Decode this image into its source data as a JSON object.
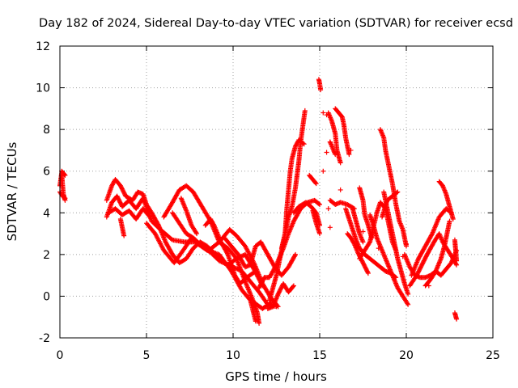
{
  "chart_data": {
    "type": "scatter",
    "title": "Day 182 of 2024, Sidereal Day-to-day VTEC variation (SDTVAR) for receiver ecsd",
    "xlabel": "GPS time / hours",
    "ylabel": "SDTVAR / TECUs",
    "xlim": [
      0,
      25
    ],
    "ylim": [
      -2,
      12
    ],
    "xticks": [
      0,
      5,
      10,
      15,
      20,
      25
    ],
    "yticks": [
      -2,
      0,
      2,
      4,
      6,
      8,
      10,
      12
    ],
    "grid": true,
    "marker": "+",
    "color": "#ff0000",
    "tracks": [
      [
        [
          0.0,
          5.3
        ],
        [
          0.1,
          5.9
        ],
        [
          0.2,
          4.9
        ],
        [
          0.3,
          4.6
        ]
      ],
      [
        [
          0.1,
          6.0
        ],
        [
          0.2,
          5.9
        ],
        [
          0.3,
          5.8
        ]
      ],
      [
        [
          0.0,
          5.0
        ],
        [
          0.15,
          4.8
        ],
        [
          0.3,
          4.7
        ]
      ],
      [
        [
          2.7,
          3.8
        ],
        [
          3.0,
          4.5
        ],
        [
          3.3,
          4.8
        ],
        [
          3.6,
          4.3
        ],
        [
          4.0,
          4.6
        ],
        [
          4.4,
          4.2
        ],
        [
          4.8,
          4.7
        ],
        [
          5.3,
          3.6
        ],
        [
          5.8,
          3.2
        ],
        [
          6.5,
          2.7
        ],
        [
          7.2,
          2.6
        ],
        [
          7.8,
          2.6
        ],
        [
          8.5,
          2.2
        ],
        [
          9.2,
          2.0
        ],
        [
          9.9,
          1.2
        ],
        [
          10.5,
          0.3
        ],
        [
          11.0,
          -0.2
        ],
        [
          11.3,
          -1.2
        ]
      ],
      [
        [
          2.7,
          4.6
        ],
        [
          3.0,
          5.3
        ],
        [
          3.2,
          5.6
        ],
        [
          3.5,
          5.3
        ],
        [
          3.8,
          4.8
        ],
        [
          4.2,
          4.6
        ],
        [
          4.5,
          5.0
        ],
        [
          4.8,
          4.9
        ],
        [
          5.0,
          4.4
        ],
        [
          5.3,
          4.0
        ],
        [
          5.7,
          3.4
        ],
        [
          6.1,
          2.6
        ],
        [
          6.5,
          2.0
        ],
        [
          6.9,
          1.6
        ],
        [
          7.3,
          1.8
        ],
        [
          7.7,
          2.3
        ],
        [
          8.1,
          2.6
        ],
        [
          8.5,
          2.4
        ],
        [
          9.0,
          2.0
        ],
        [
          9.5,
          1.6
        ],
        [
          10.0,
          1.4
        ],
        [
          10.5,
          1.2
        ],
        [
          11.0,
          0.7
        ],
        [
          11.5,
          0.2
        ],
        [
          12.0,
          -0.4
        ],
        [
          12.5,
          -0.5
        ]
      ],
      [
        [
          2.8,
          4.0
        ],
        [
          3.2,
          4.2
        ],
        [
          3.6,
          3.9
        ],
        [
          4.0,
          4.1
        ],
        [
          4.4,
          3.7
        ],
        [
          4.8,
          4.2
        ],
        [
          5.2,
          3.8
        ]
      ],
      [
        [
          3.5,
          3.7
        ],
        [
          3.6,
          3.3
        ],
        [
          3.7,
          2.9
        ]
      ],
      [
        [
          5.0,
          3.5
        ],
        [
          5.5,
          3.0
        ],
        [
          6.0,
          2.2
        ],
        [
          6.6,
          1.6
        ],
        [
          7.2,
          2.3
        ],
        [
          7.6,
          2.8
        ],
        [
          8.0,
          2.5
        ],
        [
          8.6,
          2.2
        ],
        [
          9.2,
          2.6
        ],
        [
          9.8,
          3.2
        ],
        [
          10.2,
          2.9
        ],
        [
          10.7,
          2.4
        ],
        [
          11.2,
          1.6
        ],
        [
          11.7,
          0.6
        ],
        [
          12.2,
          -0.1
        ],
        [
          12.6,
          -0.5
        ]
      ],
      [
        [
          6.0,
          3.8
        ],
        [
          6.5,
          4.5
        ],
        [
          6.9,
          5.1
        ],
        [
          7.3,
          5.3
        ],
        [
          7.7,
          5.0
        ],
        [
          8.2,
          4.3
        ],
        [
          8.7,
          3.6
        ],
        [
          9.2,
          2.6
        ],
        [
          9.7,
          2.3
        ],
        [
          10.2,
          1.8
        ],
        [
          10.7,
          0.7
        ],
        [
          11.2,
          -0.3
        ],
        [
          11.7,
          -0.6
        ],
        [
          12.2,
          -0.3
        ]
      ],
      [
        [
          6.5,
          4.0
        ],
        [
          6.9,
          3.5
        ],
        [
          7.3,
          3.0
        ],
        [
          7.7,
          2.8
        ],
        [
          8.2,
          2.4
        ],
        [
          8.7,
          2.1
        ],
        [
          9.2,
          1.7
        ],
        [
          9.7,
          1.5
        ],
        [
          10.2,
          1.8
        ],
        [
          10.7,
          2.0
        ],
        [
          11.2,
          1.3
        ],
        [
          11.7,
          0.5
        ]
      ],
      [
        [
          7.0,
          4.7
        ],
        [
          7.3,
          4.1
        ],
        [
          7.6,
          3.4
        ],
        [
          7.9,
          3.0
        ]
      ],
      [
        [
          8.4,
          3.4
        ],
        [
          8.7,
          3.7
        ],
        [
          8.9,
          3.4
        ],
        [
          9.3,
          2.6
        ],
        [
          9.7,
          2.0
        ],
        [
          10.1,
          1.0
        ],
        [
          10.4,
          0.6
        ],
        [
          10.8,
          0.9
        ],
        [
          11.3,
          1.2
        ]
      ],
      [
        [
          9.5,
          2.8
        ],
        [
          10.0,
          2.3
        ],
        [
          10.3,
          2.0
        ],
        [
          10.7,
          1.4
        ],
        [
          11.0,
          1.5
        ],
        [
          11.3,
          2.4
        ],
        [
          11.6,
          2.6
        ],
        [
          12.0,
          2.0
        ],
        [
          12.4,
          1.4
        ],
        [
          12.8,
          1.0
        ],
        [
          13.2,
          1.4
        ],
        [
          13.6,
          2.0
        ]
      ],
      [
        [
          11.5,
          0.4
        ],
        [
          11.8,
          0.9
        ],
        [
          12.1,
          0.9
        ],
        [
          12.5,
          1.5
        ],
        [
          12.9,
          2.3
        ],
        [
          13.2,
          3.0
        ],
        [
          13.5,
          3.6
        ],
        [
          13.9,
          4.2
        ],
        [
          14.3,
          4.5
        ],
        [
          14.7,
          4.6
        ],
        [
          15.0,
          4.4
        ]
      ],
      [
        [
          12.1,
          -0.2
        ],
        [
          12.3,
          0.4
        ],
        [
          12.5,
          1.0
        ],
        [
          12.7,
          1.8
        ],
        [
          12.9,
          2.6
        ],
        [
          13.1,
          3.4
        ],
        [
          13.2,
          3.8
        ],
        [
          13.4,
          4.3
        ],
        [
          13.6,
          5.2
        ],
        [
          13.8,
          6.5
        ],
        [
          13.9,
          7.4
        ],
        [
          14.0,
          8.0
        ],
        [
          14.1,
          8.6
        ],
        [
          14.15,
          8.9
        ]
      ],
      [
        [
          12.8,
          2.3
        ],
        [
          13.0,
          3.0
        ],
        [
          13.1,
          4.2
        ],
        [
          13.2,
          5.1
        ],
        [
          13.3,
          6.0
        ],
        [
          13.4,
          6.6
        ],
        [
          13.6,
          7.2
        ],
        [
          13.8,
          7.5
        ],
        [
          14.1,
          7.3
        ]
      ],
      [
        [
          13.5,
          4.0
        ],
        [
          13.8,
          4.3
        ],
        [
          14.2,
          4.5
        ],
        [
          14.5,
          4.3
        ],
        [
          14.8,
          4.0
        ],
        [
          15.0,
          3.4
        ]
      ],
      [
        [
          14.4,
          5.8
        ],
        [
          14.6,
          5.6
        ],
        [
          14.8,
          5.4
        ]
      ],
      [
        [
          14.6,
          4.1
        ],
        [
          14.8,
          3.5
        ],
        [
          15.0,
          3.0
        ]
      ],
      [
        [
          14.95,
          10.4
        ],
        [
          15.0,
          10.2
        ],
        [
          15.05,
          9.9
        ]
      ],
      [
        [
          15.5,
          8.8
        ],
        [
          15.7,
          8.4
        ],
        [
          15.9,
          7.8
        ],
        [
          16.0,
          7.0
        ],
        [
          16.2,
          6.4
        ]
      ],
      [
        [
          15.6,
          7.4
        ],
        [
          15.8,
          7.0
        ],
        [
          15.9,
          6.8
        ]
      ],
      [
        [
          15.9,
          9.0
        ],
        [
          16.1,
          8.8
        ],
        [
          16.3,
          8.6
        ],
        [
          16.4,
          8.2
        ],
        [
          16.5,
          7.6
        ],
        [
          16.6,
          7.2
        ],
        [
          16.7,
          6.8
        ]
      ],
      [
        [
          15.6,
          4.6
        ],
        [
          15.9,
          4.4
        ],
        [
          16.2,
          4.5
        ],
        [
          16.6,
          4.4
        ],
        [
          17.0,
          4.2
        ]
      ],
      [
        [
          16.5,
          4.2
        ],
        [
          16.7,
          3.7
        ],
        [
          16.9,
          3.2
        ],
        [
          17.1,
          2.7
        ],
        [
          17.3,
          2.3
        ],
        [
          17.6,
          2.0
        ],
        [
          17.9,
          1.8
        ],
        [
          18.2,
          1.6
        ],
        [
          18.5,
          1.4
        ],
        [
          18.8,
          1.2
        ],
        [
          19.1,
          1.1
        ],
        [
          19.4,
          0.9
        ]
      ],
      [
        [
          16.9,
          4.2
        ],
        [
          17.1,
          3.6
        ],
        [
          17.3,
          3.0
        ],
        [
          17.5,
          2.6
        ]
      ],
      [
        [
          16.6,
          3.0
        ],
        [
          16.8,
          2.8
        ],
        [
          17.0,
          2.5
        ],
        [
          17.2,
          2.1
        ],
        [
          17.5,
          1.6
        ],
        [
          17.8,
          1.1
        ]
      ],
      [
        [
          17.3,
          1.8
        ],
        [
          17.6,
          2.2
        ],
        [
          17.9,
          2.6
        ],
        [
          18.1,
          3.3
        ],
        [
          18.3,
          4.0
        ],
        [
          18.5,
          4.5
        ],
        [
          18.8,
          4.2
        ],
        [
          19.0,
          3.4
        ],
        [
          19.2,
          2.6
        ],
        [
          19.4,
          2.2
        ]
      ],
      [
        [
          17.3,
          5.2
        ],
        [
          17.5,
          4.6
        ],
        [
          17.6,
          3.9
        ],
        [
          17.8,
          3.4
        ],
        [
          18.0,
          2.8
        ]
      ],
      [
        [
          18.5,
          8.0
        ],
        [
          18.7,
          7.6
        ],
        [
          18.8,
          7.0
        ],
        [
          19.0,
          6.2
        ],
        [
          19.2,
          5.4
        ],
        [
          19.4,
          4.4
        ],
        [
          19.6,
          3.6
        ],
        [
          19.8,
          3.2
        ],
        [
          20.0,
          2.4
        ]
      ],
      [
        [
          17.9,
          3.9
        ],
        [
          18.1,
          3.4
        ],
        [
          18.3,
          2.8
        ],
        [
          18.6,
          2.2
        ],
        [
          18.9,
          1.6
        ],
        [
          19.2,
          1.0
        ],
        [
          19.5,
          0.4
        ],
        [
          19.8,
          0.0
        ],
        [
          20.1,
          -0.4
        ]
      ],
      [
        [
          18.6,
          3.8
        ],
        [
          18.9,
          4.6
        ],
        [
          19.2,
          4.8
        ],
        [
          19.5,
          5.0
        ]
      ],
      [
        [
          18.7,
          5.0
        ],
        [
          18.9,
          4.2
        ],
        [
          19.1,
          3.4
        ],
        [
          19.3,
          2.6
        ],
        [
          19.5,
          1.8
        ],
        [
          19.7,
          1.2
        ],
        [
          19.9,
          0.6
        ],
        [
          20.1,
          0.1
        ]
      ],
      [
        [
          19.9,
          2.0
        ],
        [
          20.2,
          1.4
        ],
        [
          20.5,
          1.0
        ],
        [
          20.8,
          0.9
        ],
        [
          21.1,
          0.9
        ],
        [
          21.4,
          1.0
        ],
        [
          21.7,
          1.2
        ],
        [
          22.0,
          1.0
        ],
        [
          22.3,
          1.3
        ],
        [
          22.6,
          1.6
        ],
        [
          22.9,
          2.2
        ]
      ],
      [
        [
          20.2,
          0.5
        ],
        [
          20.6,
          1.0
        ],
        [
          20.9,
          1.5
        ],
        [
          21.2,
          2.0
        ],
        [
          21.6,
          2.6
        ],
        [
          21.9,
          3.0
        ],
        [
          22.1,
          2.6
        ],
        [
          22.4,
          2.2
        ],
        [
          22.7,
          1.8
        ],
        [
          22.9,
          1.5
        ]
      ],
      [
        [
          20.3,
          1.0
        ],
        [
          20.7,
          1.8
        ],
        [
          21.1,
          2.4
        ],
        [
          21.5,
          3.0
        ],
        [
          21.9,
          3.8
        ],
        [
          22.3,
          4.2
        ],
        [
          22.6,
          4.0
        ]
      ],
      [
        [
          21.1,
          0.5
        ],
        [
          21.4,
          0.8
        ],
        [
          21.7,
          1.2
        ],
        [
          22.0,
          1.8
        ],
        [
          22.2,
          2.4
        ],
        [
          22.4,
          3.2
        ],
        [
          22.5,
          3.6
        ]
      ],
      [
        [
          21.9,
          5.5
        ],
        [
          22.1,
          5.3
        ],
        [
          22.3,
          4.9
        ],
        [
          22.5,
          4.3
        ],
        [
          22.7,
          3.7
        ]
      ],
      [
        [
          22.8,
          -0.8
        ],
        [
          22.9,
          -1.1
        ]
      ],
      [
        [
          22.8,
          2.7
        ],
        [
          22.85,
          2.2
        ],
        [
          22.9,
          1.7
        ]
      ],
      [
        [
          11.2,
          -0.3
        ],
        [
          11.4,
          -0.8
        ],
        [
          11.5,
          -1.3
        ]
      ],
      [
        [
          12.0,
          -0.6
        ],
        [
          12.3,
          -0.5
        ],
        [
          12.6,
          0.1
        ],
        [
          12.9,
          0.6
        ],
        [
          13.2,
          0.2
        ],
        [
          13.5,
          0.5
        ]
      ]
    ],
    "isolated_points": [
      [
        15.2,
        8.8
      ],
      [
        15.4,
        8.7
      ],
      [
        15.6,
        7.4
      ],
      [
        15.5,
        4.2
      ],
      [
        15.6,
        3.3
      ],
      [
        15.2,
        6.0
      ],
      [
        15.4,
        6.9
      ],
      [
        16.2,
        5.1
      ],
      [
        16.8,
        7.0
      ],
      [
        17.5,
        3.1
      ],
      [
        18.4,
        2.3
      ],
      [
        19.8,
        1.9
      ],
      [
        20.0,
        2.5
      ],
      [
        21.3,
        0.5
      ]
    ]
  }
}
